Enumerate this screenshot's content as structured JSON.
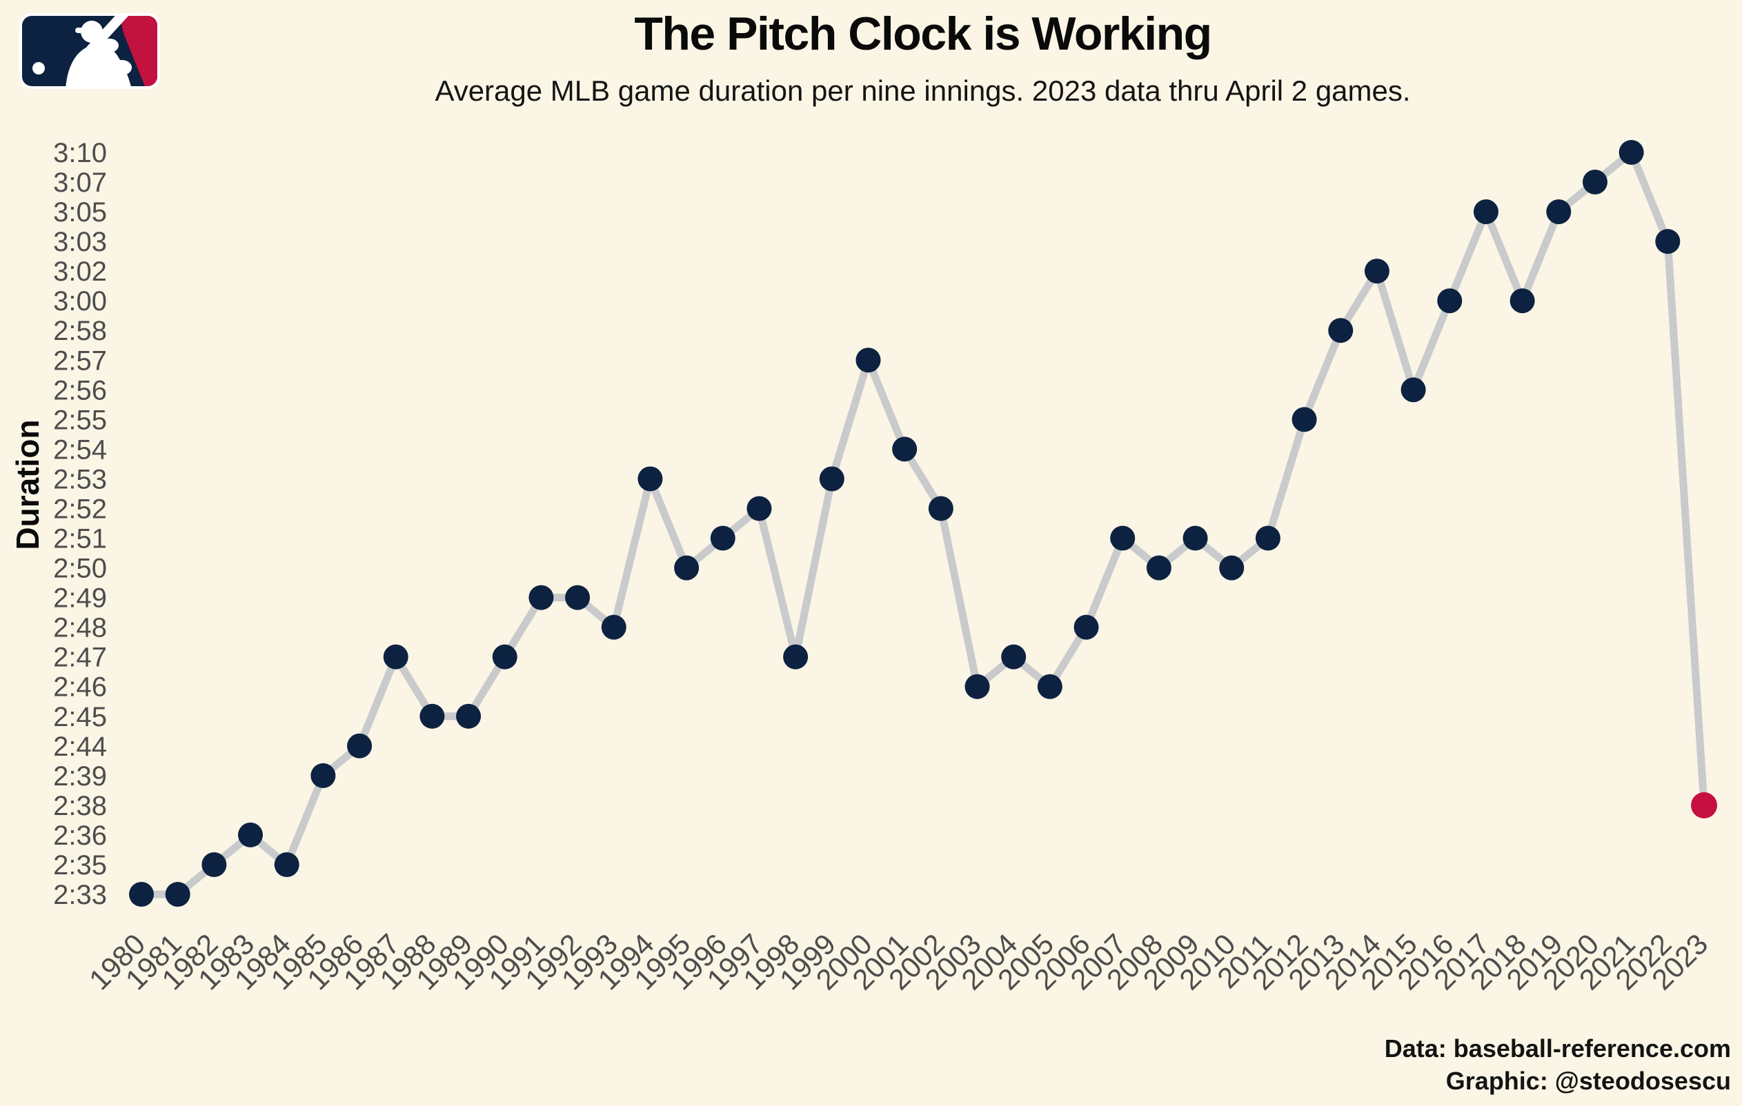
{
  "header": {
    "title": "The Pitch Clock is Working",
    "subtitle": "Average MLB game duration per nine innings. 2023 data thru April 2 games."
  },
  "logo": {
    "name": "mlb-logo",
    "navy": "#0D2240",
    "red": "#C11240",
    "white": "#FFFFFF"
  },
  "chart_data": {
    "type": "line",
    "title": "The Pitch Clock is Working",
    "subtitle": "Average MLB game duration per nine innings. 2023 data thru April 2 games.",
    "y_axis_label": "Duration",
    "x_axis_label": "",
    "categories": [
      1980,
      1981,
      1982,
      1983,
      1984,
      1985,
      1986,
      1987,
      1988,
      1989,
      1990,
      1991,
      1992,
      1993,
      1994,
      1995,
      1996,
      1997,
      1998,
      1999,
      2000,
      2001,
      2002,
      2003,
      2004,
      2005,
      2006,
      2007,
      2008,
      2009,
      2010,
      2011,
      2012,
      2013,
      2014,
      2015,
      2016,
      2017,
      2018,
      2019,
      2020,
      2021,
      2022,
      2023
    ],
    "series": [
      {
        "name": "duration_per_9_innings",
        "values": [
          "2:33",
          "2:33",
          "2:35",
          "2:36",
          "2:35",
          "2:39",
          "2:44",
          "2:47",
          "2:45",
          "2:45",
          "2:47",
          "2:49",
          "2:49",
          "2:48",
          "2:53",
          "2:50",
          "2:51",
          "2:52",
          "2:47",
          "2:53",
          "2:57",
          "2:54",
          "2:52",
          "2:46",
          "2:47",
          "2:46",
          "2:48",
          "2:51",
          "2:50",
          "2:51",
          "2:50",
          "2:51",
          "2:55",
          "2:58",
          "3:02",
          "2:56",
          "3:00",
          "3:05",
          "3:00",
          "3:05",
          "3:07",
          "3:10",
          "3:03",
          "2:38"
        ]
      }
    ],
    "highlight": {
      "year": 2023,
      "value": "2:38",
      "color": "#C40F40"
    },
    "y_ticks": [
      "3:10",
      "3:07",
      "3:05",
      "3:03",
      "3:02",
      "3:00",
      "2:58",
      "2:57",
      "2:56",
      "2:55",
      "2:54",
      "2:53",
      "2:52",
      "2:51",
      "2:50",
      "2:49",
      "2:48",
      "2:47",
      "2:46",
      "2:45",
      "2:44",
      "2:39",
      "2:38",
      "2:36",
      "2:35",
      "2:33"
    ],
    "y_scale": "categorical - unique data values evenly spaced, max at top",
    "x_range": [
      1980,
      2023
    ],
    "grid": false,
    "legend": "none",
    "point_color": "#0D2240",
    "line_color": "#C9CACB",
    "axis_label_color": "#4D4D4D",
    "background_color": "#FAF5E5"
  },
  "footer": {
    "line1": "Data: baseball-reference.com",
    "line2": "Graphic: @steodosescu"
  }
}
